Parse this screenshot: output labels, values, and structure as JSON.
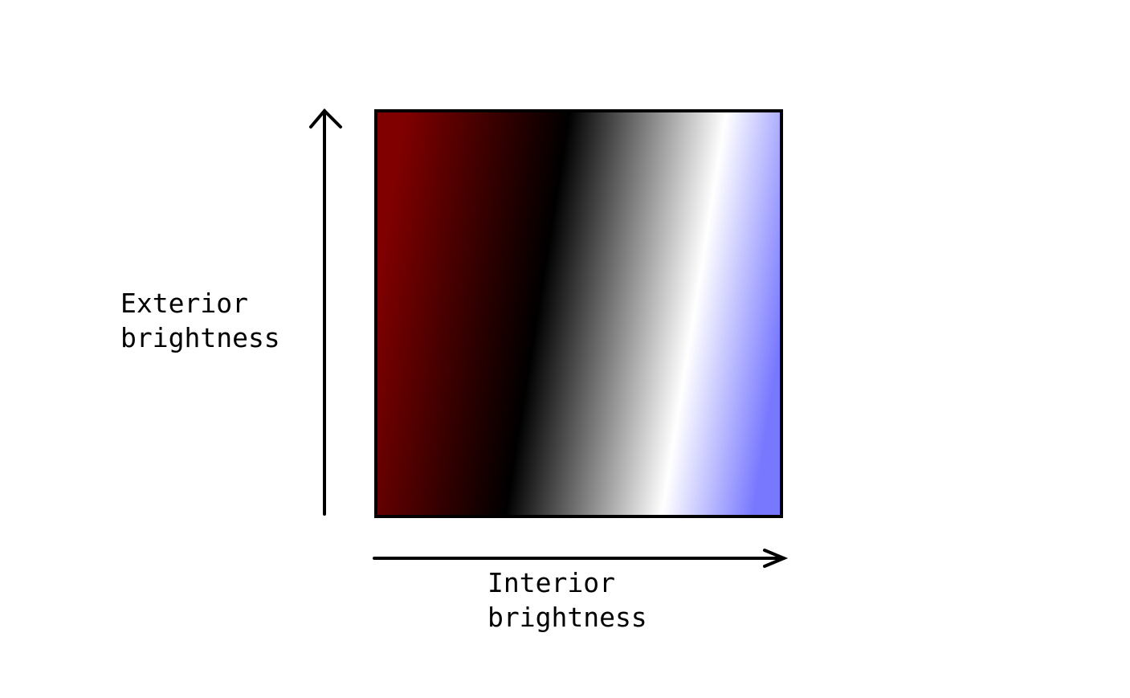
{
  "diagram": {
    "y_axis_label": [
      "Exterior",
      "brightness"
    ],
    "x_axis_label": [
      "Interior",
      "brightness"
    ],
    "colors": {
      "dark_end": "#800000",
      "mid_dark": "#000000",
      "mid_light": "#ffffff",
      "light_end": "#7878ff",
      "axis": "#000000"
    }
  }
}
